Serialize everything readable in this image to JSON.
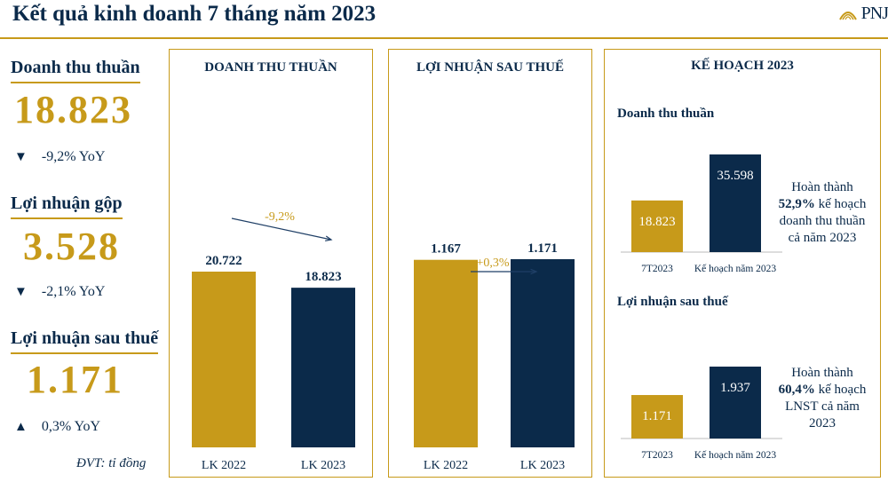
{
  "title": "Kết quả kinh doanh 7 tháng năm 2023",
  "logo": {
    "text": "PNJ",
    "icon": "pnj-logo-icon"
  },
  "unit": "ĐVT: tỉ đồng",
  "kpis": [
    {
      "label": "Doanh thu thuần",
      "value": "18.823",
      "yoy": "-9,2% YoY",
      "direction": "down"
    },
    {
      "label": "Lợi nhuận gộp",
      "value": "3.528",
      "yoy": "-2,1% YoY",
      "direction": "down"
    },
    {
      "label": "Lợi nhuận sau thuế",
      "value": "1.171",
      "yoy": "0,3% YoY",
      "direction": "up"
    }
  ],
  "panels": {
    "revenue": {
      "title": "DOANH THU THUẦN",
      "change": "-9,2%"
    },
    "profit": {
      "title": "LỢI NHUẬN SAU THUẾ",
      "change": "+0,3%"
    },
    "plan": {
      "title": "KẾ HOẠCH 2023",
      "revenue_sub": "Doanh thu thuần",
      "revenue_note": [
        "Hoàn thành ",
        "52,9%",
        " kế hoạch doanh thu thuần cả năm 2023"
      ],
      "profit_sub": "Lợi nhuận sau thuế",
      "profit_note": [
        "Hoàn thành ",
        "60,4%",
        " kế hoạch LNST cả năm 2023"
      ]
    }
  },
  "colors": {
    "gold": "#c79a1a",
    "navy": "#0b2a4a"
  },
  "chart_data": [
    {
      "type": "bar",
      "title": "DOANH THU THUẦN",
      "categories": [
        "LK 2022",
        "LK 2023"
      ],
      "values": [
        20722,
        18823
      ],
      "labels": [
        "20.722",
        "18.823"
      ],
      "colors": [
        "#c79a1a",
        "#0b2a4a"
      ],
      "ylim": [
        0,
        36000
      ]
    },
    {
      "type": "bar",
      "title": "LỢI NHUẬN SAU THUẾ",
      "categories": [
        "LK 2022",
        "LK 2023"
      ],
      "values": [
        1167,
        1171
      ],
      "labels": [
        "1.167",
        "1.171"
      ],
      "colors": [
        "#c79a1a",
        "#0b2a4a"
      ],
      "ylim": [
        0,
        1900
      ]
    },
    {
      "type": "bar",
      "title": "Doanh thu thuần",
      "categories": [
        "7T2023",
        "Kế hoạch năm 2023"
      ],
      "values": [
        18823,
        35598
      ],
      "labels": [
        "18.823",
        "35.598"
      ],
      "colors": [
        "#c79a1a",
        "#0b2a4a"
      ],
      "ylim": [
        0,
        35598
      ]
    },
    {
      "type": "bar",
      "title": "Lợi nhuận sau thuế",
      "categories": [
        "7T2023",
        "Kế hoạch năm 2023"
      ],
      "values": [
        1171,
        1937
      ],
      "labels": [
        "1.171",
        "1.937"
      ],
      "colors": [
        "#c79a1a",
        "#0b2a4a"
      ],
      "ylim": [
        0,
        1937
      ]
    }
  ]
}
